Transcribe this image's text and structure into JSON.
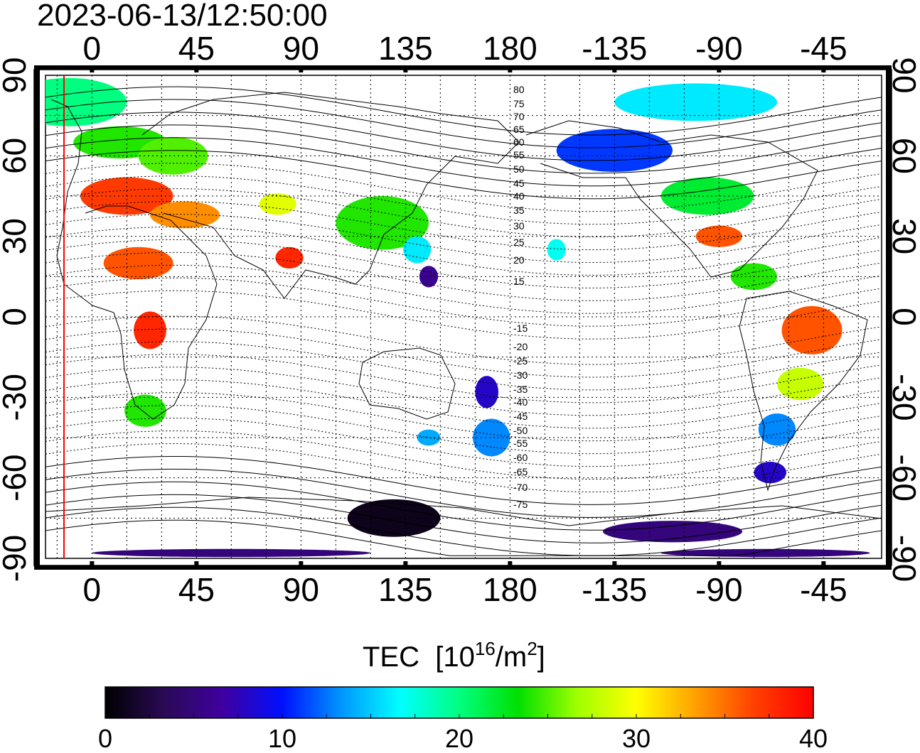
{
  "header": {
    "timestamp": "2023-06-13/12:50:00"
  },
  "map": {
    "lon_ticks": [
      "0",
      "45",
      "90",
      "135",
      "180",
      "-135",
      "-90",
      "-45"
    ],
    "lat_ticks": [
      "90",
      "60",
      "30",
      "0",
      "-30",
      "-60",
      "-90"
    ],
    "mag_lat_labels": [
      "80",
      "75",
      "70",
      "65",
      "60",
      "55",
      "50",
      "45",
      "40",
      "35",
      "30",
      "25",
      "20",
      "15",
      "-15",
      "-20",
      "-25",
      "-30",
      "-35",
      "-40",
      "-45",
      "-50",
      "-55",
      "-60",
      "-65",
      "-70",
      "-75"
    ],
    "marker_line_color": "#ff0000"
  },
  "colorbar": {
    "label_main": "TEC  [10",
    "label_sup1": "16",
    "label_mid": "/m",
    "label_sup2": "2",
    "label_end": "]",
    "range": [
      0,
      40
    ],
    "ticks": [
      "0",
      "10",
      "20",
      "30",
      "40"
    ],
    "colormap": [
      "#000000",
      "#2a0a55",
      "#3f00a0",
      "#0010ff",
      "#0096ff",
      "#00ffff",
      "#00ff80",
      "#00e000",
      "#a0ff00",
      "#ffff00",
      "#ffa000",
      "#ff4000",
      "#ff0000"
    ]
  },
  "tec_blobs": [
    {
      "lon": -10,
      "lat": 80,
      "w": 50,
      "h": 18,
      "tec": 20
    },
    {
      "lon": 12,
      "lat": 65,
      "w": 40,
      "h": 12,
      "tec": 24
    },
    {
      "lon": 35,
      "lat": 60,
      "w": 30,
      "h": 14,
      "tec": 25
    },
    {
      "lon": 15,
      "lat": 45,
      "w": 40,
      "h": 14,
      "tec": 37
    },
    {
      "lon": 40,
      "lat": 38,
      "w": 30,
      "h": 10,
      "tec": 34
    },
    {
      "lon": 20,
      "lat": 20,
      "w": 30,
      "h": 12,
      "tec": 36
    },
    {
      "lon": 25,
      "lat": -5,
      "w": 14,
      "h": 14,
      "tec": 38
    },
    {
      "lon": 23,
      "lat": -35,
      "w": 18,
      "h": 12,
      "tec": 24
    },
    {
      "lon": 80,
      "lat": 42,
      "w": 16,
      "h": 8,
      "tec": 29
    },
    {
      "lon": 85,
      "lat": 22,
      "w": 12,
      "h": 8,
      "tec": 38
    },
    {
      "lon": 125,
      "lat": 35,
      "w": 40,
      "h": 20,
      "tec": 24
    },
    {
      "lon": 140,
      "lat": 25,
      "w": 12,
      "h": 10,
      "tec": 16
    },
    {
      "lon": 145,
      "lat": 15,
      "w": 8,
      "h": 8,
      "tec": 6
    },
    {
      "lon": 170,
      "lat": -28,
      "w": 10,
      "h": 12,
      "tec": 8
    },
    {
      "lon": 172,
      "lat": -45,
      "w": 16,
      "h": 14,
      "tec": 13
    },
    {
      "lon": 145,
      "lat": -45,
      "w": 10,
      "h": 6,
      "tec": 14
    },
    {
      "lon": 130,
      "lat": -75,
      "w": 40,
      "h": 14,
      "tec": 1
    },
    {
      "lon": -135,
      "lat": 62,
      "w": 50,
      "h": 16,
      "tec": 11
    },
    {
      "lon": -100,
      "lat": 80,
      "w": 70,
      "h": 14,
      "tec": 16
    },
    {
      "lon": -95,
      "lat": 45,
      "w": 40,
      "h": 14,
      "tec": 22
    },
    {
      "lon": -90,
      "lat": 30,
      "w": 20,
      "h": 8,
      "tec": 36
    },
    {
      "lon": -75,
      "lat": 15,
      "w": 20,
      "h": 10,
      "tec": 24
    },
    {
      "lon": -50,
      "lat": -5,
      "w": 26,
      "h": 18,
      "tec": 36
    },
    {
      "lon": -55,
      "lat": -25,
      "w": 20,
      "h": 12,
      "tec": 28
    },
    {
      "lon": -65,
      "lat": -42,
      "w": 16,
      "h": 12,
      "tec": 13
    },
    {
      "lon": -68,
      "lat": -58,
      "w": 14,
      "h": 8,
      "tec": 8
    },
    {
      "lon": -160,
      "lat": 25,
      "w": 8,
      "h": 8,
      "tec": 17
    },
    {
      "lon": -110,
      "lat": -80,
      "w": 60,
      "h": 8,
      "tec": 5
    },
    {
      "lon": 60,
      "lat": -88,
      "w": 120,
      "h": 3,
      "tec": 5
    },
    {
      "lon": -70,
      "lat": -88,
      "w": 90,
      "h": 3,
      "tec": 5
    }
  ]
}
